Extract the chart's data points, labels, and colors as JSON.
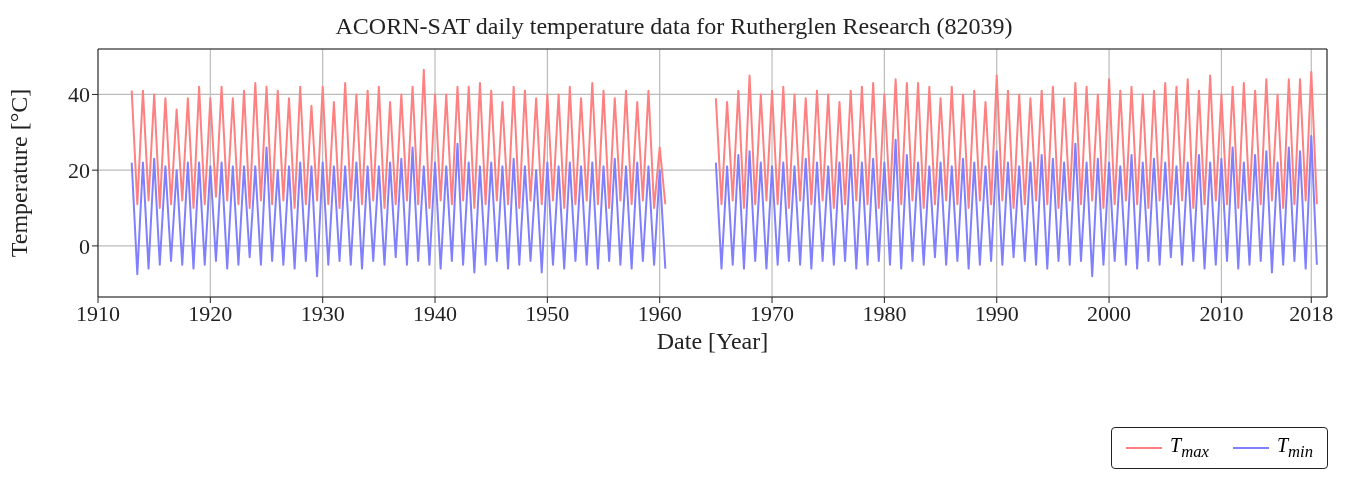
{
  "chart_data": {
    "type": "line",
    "title": "ACORN-SAT daily temperature data for Rutherglen Research (82039)",
    "xlabel": "Date [Year]",
    "ylabel": "Temperature [°C]",
    "x": [
      1913,
      1913.5,
      1914,
      1914.5,
      1915,
      1915.5,
      1916,
      1916.5,
      1917,
      1917.5,
      1918,
      1918.5,
      1919,
      1919.5,
      1920,
      1920.5,
      1921,
      1921.5,
      1922,
      1922.5,
      1923,
      1923.5,
      1924,
      1924.5,
      1925,
      1925.5,
      1926,
      1926.5,
      1927,
      1927.5,
      1928,
      1928.5,
      1929,
      1929.5,
      1930,
      1930.5,
      1931,
      1931.5,
      1932,
      1932.5,
      1933,
      1933.5,
      1934,
      1934.5,
      1935,
      1935.5,
      1936,
      1936.5,
      1937,
      1937.5,
      1938,
      1938.5,
      1939,
      1939.5,
      1940,
      1940.5,
      1941,
      1941.5,
      1942,
      1942.5,
      1943,
      1943.5,
      1944,
      1944.5,
      1945,
      1945.5,
      1946,
      1946.5,
      1947,
      1947.5,
      1948,
      1948.5,
      1949,
      1949.5,
      1950,
      1950.5,
      1951,
      1951.5,
      1952,
      1952.5,
      1953,
      1953.5,
      1954,
      1954.5,
      1955,
      1955.5,
      1956,
      1956.5,
      1957,
      1957.5,
      1958,
      1958.5,
      1959,
      1959.5,
      1960,
      1960.5,
      1962.5,
      1965,
      1965.5,
      1966,
      1966.5,
      1967,
      1967.5,
      1968,
      1968.5,
      1969,
      1969.5,
      1970,
      1970.5,
      1971,
      1971.5,
      1972,
      1972.5,
      1973,
      1973.5,
      1974,
      1974.5,
      1975,
      1975.5,
      1976,
      1976.5,
      1977,
      1977.5,
      1978,
      1978.5,
      1979,
      1979.5,
      1980,
      1980.5,
      1981,
      1981.5,
      1982,
      1982.5,
      1983,
      1983.5,
      1984,
      1984.5,
      1985,
      1985.5,
      1986,
      1986.5,
      1987,
      1987.5,
      1988,
      1988.5,
      1989,
      1989.5,
      1990,
      1990.5,
      1991,
      1991.5,
      1992,
      1992.5,
      1993,
      1993.5,
      1994,
      1994.5,
      1995,
      1995.5,
      1996,
      1996.5,
      1997,
      1997.5,
      1998,
      1998.5,
      1999,
      1999.5,
      2000,
      2000.5,
      2001,
      2001.5,
      2002,
      2002.5,
      2003,
      2003.5,
      2004,
      2004.5,
      2005,
      2005.5,
      2006,
      2006.5,
      2007,
      2007.5,
      2008,
      2008.5,
      2009,
      2009.5,
      2010,
      2010.5,
      2011,
      2011.5,
      2012,
      2012.5,
      2013,
      2013.5,
      2014,
      2014.5,
      2015,
      2015.5,
      2016,
      2016.5,
      2017,
      2017.5,
      2018,
      2018.5
    ],
    "series": [
      {
        "name": "T$_{max}$",
        "color": "#ff8080",
        "values": [
          41,
          11,
          41,
          12,
          40,
          10,
          39,
          11,
          36,
          12,
          39,
          10,
          42,
          11,
          39,
          13,
          42,
          12,
          39,
          11,
          41,
          10,
          43,
          12,
          42,
          11,
          41,
          12,
          39,
          10,
          42,
          11,
          37,
          12,
          42,
          11,
          38,
          10,
          43,
          12,
          40,
          11,
          41,
          12,
          42,
          10,
          38,
          11,
          40,
          12,
          42,
          11,
          46.5,
          10,
          40,
          12,
          40,
          11,
          42,
          12,
          42,
          10,
          43,
          11,
          41,
          12,
          38,
          11,
          42,
          10,
          41,
          12,
          39,
          11,
          40,
          12,
          40,
          10,
          42,
          11,
          39,
          12,
          43,
          11,
          41,
          10,
          39,
          12,
          41,
          11,
          38,
          12,
          41,
          10,
          26,
          11,
          null,
          39,
          11,
          38,
          12,
          41,
          10,
          45,
          11,
          40,
          12,
          41,
          11,
          42,
          10,
          40,
          12,
          39,
          11,
          41,
          12,
          40,
          10,
          38,
          11,
          41,
          12,
          42,
          11,
          43,
          10,
          40,
          12,
          44,
          11,
          43,
          12,
          43,
          10,
          42,
          11,
          39,
          12,
          42,
          11,
          40,
          10,
          41,
          12,
          38,
          11,
          45,
          12,
          41,
          10,
          40,
          11,
          39,
          12,
          41,
          11,
          42,
          10,
          39,
          12,
          43,
          11,
          42,
          12,
          40,
          10,
          44,
          11,
          41,
          12,
          42,
          11,
          40,
          10,
          41,
          12,
          43,
          11,
          42,
          12,
          44,
          10,
          41,
          11,
          45,
          12,
          40,
          11,
          42,
          10,
          43,
          12,
          41,
          11,
          44,
          12,
          40,
          10,
          44,
          11,
          44,
          12,
          46,
          11
        ]
      },
      {
        "name": "T$_{min}$",
        "color": "#8080ff",
        "values": [
          22,
          -7.5,
          22,
          -6,
          23,
          -5,
          21,
          -4,
          20,
          -5,
          22,
          -6,
          22,
          -5,
          21,
          -4,
          22,
          -6,
          21,
          -5,
          21,
          -3,
          21,
          -5,
          26,
          -4,
          20,
          -5,
          21,
          -6,
          22,
          -4,
          21,
          -8,
          22,
          -5,
          21,
          -4,
          21,
          -5,
          22,
          -6,
          21,
          -4,
          21,
          -5,
          22,
          -3,
          23,
          -5,
          26,
          -4,
          21,
          -5,
          22,
          -6,
          21,
          -4,
          27,
          -5,
          22,
          -7,
          21,
          -5,
          22,
          -4,
          21,
          -6,
          23,
          -5,
          21,
          -4,
          20,
          -7,
          22,
          -5,
          21,
          -6,
          22,
          -4,
          21,
          -5,
          22,
          -6,
          21,
          -4,
          23,
          -5,
          21,
          -6,
          22,
          -4,
          21,
          -5,
          20,
          -6,
          null,
          22,
          -6,
          21,
          -5,
          24,
          -6,
          25,
          -4,
          22,
          -6,
          21,
          -5,
          22,
          -4,
          21,
          -5,
          23,
          -6,
          22,
          -4,
          21,
          -5,
          22,
          -4,
          24,
          -6,
          22,
          -5,
          23,
          -4,
          22,
          -5,
          28,
          -6,
          24,
          -4,
          22,
          -5,
          21,
          -3,
          22,
          -5,
          21,
          -4,
          23,
          -6,
          22,
          -5,
          21,
          -4,
          25,
          -5,
          22,
          -3,
          21,
          -4,
          22,
          -5,
          24,
          -6,
          23,
          -4,
          22,
          -5,
          27,
          -4,
          22,
          -8,
          23,
          -5,
          22,
          -4,
          21,
          -5,
          24,
          -6,
          22,
          -4,
          23,
          -5,
          22,
          -3,
          21,
          -5,
          22,
          -4,
          24,
          -6,
          22,
          -5,
          23,
          -4,
          26,
          -6,
          22,
          -5,
          24,
          -4,
          25,
          -7,
          22,
          -5,
          26,
          -4,
          25,
          -6,
          29,
          -5
        ]
      }
    ],
    "xlim": [
      1910,
      2019.4
    ],
    "xticks": [
      1910,
      1920,
      1930,
      1940,
      1950,
      1960,
      1970,
      1980,
      1990,
      2000,
      2010,
      2018
    ],
    "ylim": [
      -13.5,
      52
    ],
    "yticks": [
      0,
      20,
      40
    ],
    "grid": true,
    "legend": "bottom right",
    "marker": "none"
  }
}
